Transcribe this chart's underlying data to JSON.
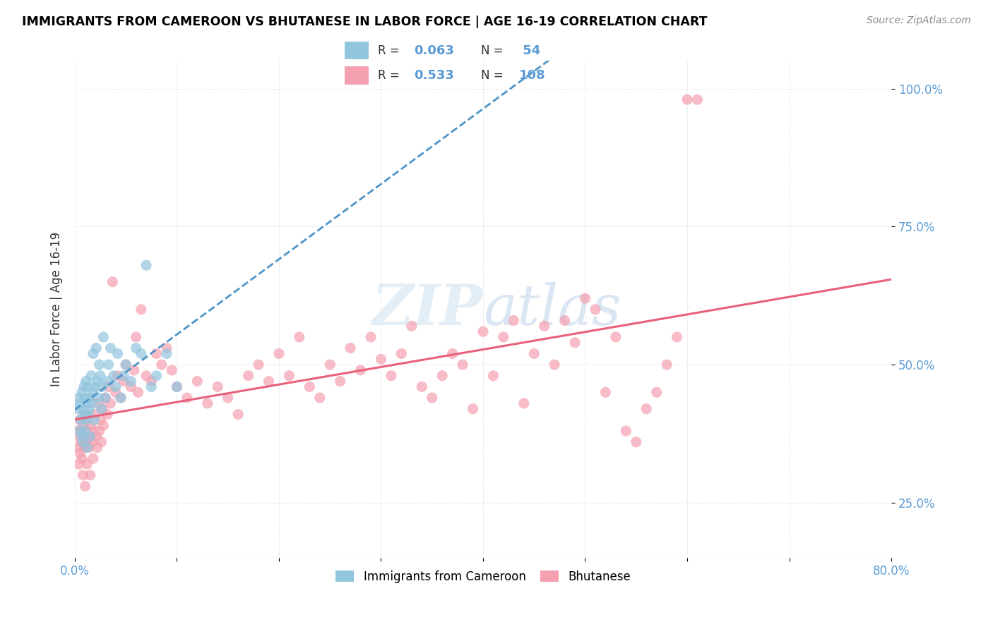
{
  "title": "IMMIGRANTS FROM CAMEROON VS BHUTANESE IN LABOR FORCE | AGE 16-19 CORRELATION CHART",
  "source": "Source: ZipAtlas.com",
  "ylabel": "In Labor Force | Age 16-19",
  "xlim": [
    0.0,
    0.8
  ],
  "ylim": [
    0.15,
    1.05
  ],
  "ytick_positions": [
    0.25,
    0.5,
    0.75,
    1.0
  ],
  "ytick_labels": [
    "25.0%",
    "50.0%",
    "75.0%",
    "100.0%"
  ],
  "color_cameroon": "#92c5de",
  "color_bhutanese": "#f4a0b0",
  "color_line_cameroon": "#4d94c8",
  "color_line_bhutanese": "#e8607a",
  "color_text_blue": "#5b9bd5",
  "color_grid": "#e0e0e0",
  "watermark_color": "#cce0f0",
  "cameroon_x": [
    0.003,
    0.004,
    0.005,
    0.005,
    0.006,
    0.007,
    0.007,
    0.008,
    0.008,
    0.009,
    0.009,
    0.01,
    0.01,
    0.011,
    0.011,
    0.012,
    0.012,
    0.013,
    0.013,
    0.014,
    0.015,
    0.015,
    0.016,
    0.017,
    0.018,
    0.018,
    0.019,
    0.02,
    0.021,
    0.022,
    0.023,
    0.024,
    0.025,
    0.026,
    0.027,
    0.028,
    0.03,
    0.032,
    0.033,
    0.035,
    0.038,
    0.04,
    0.042,
    0.045,
    0.048,
    0.05,
    0.055,
    0.06,
    0.065,
    0.07,
    0.075,
    0.08,
    0.09,
    0.1
  ],
  "cameroon_y": [
    0.42,
    0.44,
    0.38,
    0.43,
    0.4,
    0.37,
    0.45,
    0.36,
    0.42,
    0.41,
    0.46,
    0.38,
    0.44,
    0.47,
    0.4,
    0.43,
    0.35,
    0.41,
    0.46,
    0.42,
    0.44,
    0.37,
    0.48,
    0.43,
    0.52,
    0.45,
    0.4,
    0.46,
    0.53,
    0.47,
    0.44,
    0.5,
    0.48,
    0.42,
    0.46,
    0.55,
    0.44,
    0.47,
    0.5,
    0.53,
    0.48,
    0.46,
    0.52,
    0.44,
    0.48,
    0.5,
    0.47,
    0.53,
    0.52,
    0.68,
    0.46,
    0.48,
    0.52,
    0.46
  ],
  "bhutanese_x": [
    0.003,
    0.004,
    0.004,
    0.005,
    0.005,
    0.005,
    0.006,
    0.007,
    0.007,
    0.008,
    0.008,
    0.009,
    0.01,
    0.01,
    0.01,
    0.011,
    0.012,
    0.012,
    0.013,
    0.014,
    0.015,
    0.015,
    0.016,
    0.017,
    0.018,
    0.018,
    0.02,
    0.021,
    0.022,
    0.023,
    0.024,
    0.025,
    0.026,
    0.027,
    0.028,
    0.03,
    0.032,
    0.033,
    0.035,
    0.037,
    0.04,
    0.042,
    0.045,
    0.048,
    0.05,
    0.055,
    0.058,
    0.06,
    0.062,
    0.065,
    0.07,
    0.075,
    0.08,
    0.085,
    0.09,
    0.095,
    0.1,
    0.11,
    0.12,
    0.13,
    0.14,
    0.15,
    0.16,
    0.17,
    0.18,
    0.19,
    0.2,
    0.21,
    0.22,
    0.23,
    0.24,
    0.25,
    0.26,
    0.27,
    0.28,
    0.29,
    0.3,
    0.31,
    0.32,
    0.33,
    0.34,
    0.35,
    0.36,
    0.37,
    0.38,
    0.39,
    0.4,
    0.41,
    0.42,
    0.43,
    0.44,
    0.45,
    0.46,
    0.47,
    0.48,
    0.49,
    0.5,
    0.51,
    0.52,
    0.53,
    0.54,
    0.55,
    0.56,
    0.57,
    0.58,
    0.59,
    0.6,
    0.61
  ],
  "bhutanese_y": [
    0.38,
    0.35,
    0.32,
    0.4,
    0.37,
    0.34,
    0.36,
    0.38,
    0.33,
    0.39,
    0.3,
    0.37,
    0.41,
    0.35,
    0.28,
    0.38,
    0.36,
    0.32,
    0.4,
    0.35,
    0.37,
    0.3,
    0.39,
    0.36,
    0.38,
    0.33,
    0.41,
    0.37,
    0.35,
    0.43,
    0.38,
    0.4,
    0.36,
    0.42,
    0.39,
    0.44,
    0.41,
    0.46,
    0.43,
    0.65,
    0.45,
    0.48,
    0.44,
    0.47,
    0.5,
    0.46,
    0.49,
    0.55,
    0.45,
    0.6,
    0.48,
    0.47,
    0.52,
    0.5,
    0.53,
    0.49,
    0.46,
    0.44,
    0.47,
    0.43,
    0.46,
    0.44,
    0.41,
    0.48,
    0.5,
    0.47,
    0.52,
    0.48,
    0.55,
    0.46,
    0.44,
    0.5,
    0.47,
    0.53,
    0.49,
    0.55,
    0.51,
    0.48,
    0.52,
    0.57,
    0.46,
    0.44,
    0.48,
    0.52,
    0.5,
    0.42,
    0.56,
    0.48,
    0.55,
    0.58,
    0.43,
    0.52,
    0.57,
    0.5,
    0.58,
    0.54,
    0.62,
    0.6,
    0.45,
    0.55,
    0.38,
    0.36,
    0.42,
    0.45,
    0.5,
    0.55,
    0.98,
    0.98
  ]
}
